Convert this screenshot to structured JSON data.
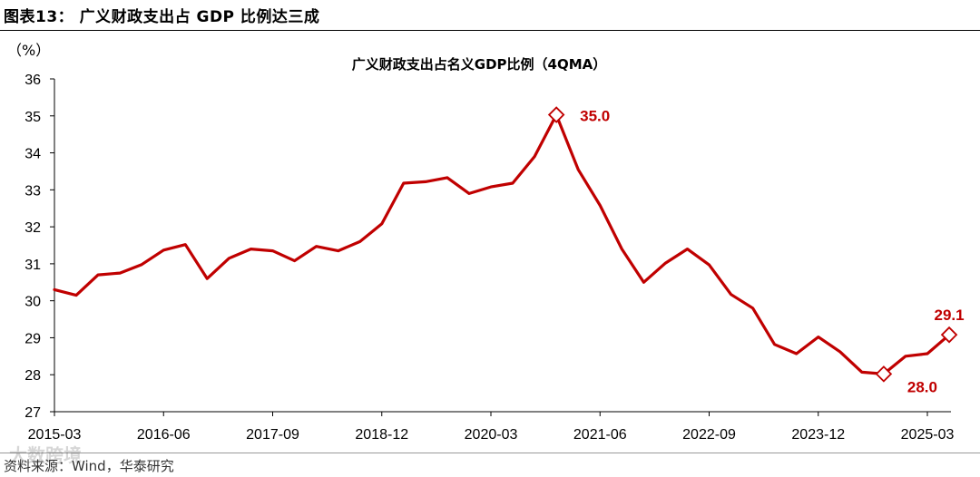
{
  "figure_title": "图表13：  广义财政支出占 GDP 比例达三成",
  "source": "资料来源：Wind，华泰研究",
  "watermark": "大数跨境",
  "chart_data": {
    "type": "line",
    "title": "广义财政支出占名义GDP比例（4QMA）",
    "ylabel": "（%）",
    "xlabel": "",
    "ylim": [
      27,
      36
    ],
    "yticks": [
      27,
      28,
      29,
      30,
      31,
      32,
      33,
      34,
      35,
      36
    ],
    "xtick_labels": [
      "2015-03",
      "2016-06",
      "2017-09",
      "2018-12",
      "2020-03",
      "2021-06",
      "2022-09",
      "2023-12",
      "2025-03"
    ],
    "line_color": "#C00000",
    "series": [
      {
        "name": "广义财政支出占名义GDP比例",
        "x": [
          "2015-03",
          "2015-06",
          "2015-09",
          "2015-12",
          "2016-03",
          "2016-06",
          "2016-09",
          "2016-12",
          "2017-03",
          "2017-06",
          "2017-09",
          "2017-12",
          "2018-03",
          "2018-06",
          "2018-09",
          "2018-12",
          "2019-03",
          "2019-06",
          "2019-09",
          "2019-12",
          "2020-03",
          "2020-06",
          "2020-09",
          "2020-12",
          "2021-03",
          "2021-06",
          "2021-09",
          "2021-12",
          "2022-03",
          "2022-06",
          "2022-09",
          "2022-12",
          "2023-03",
          "2023-06",
          "2023-09",
          "2023-12",
          "2024-03",
          "2024-06",
          "2024-09",
          "2024-12",
          "2025-03",
          "2025-06"
        ],
        "values": [
          30.3,
          30.15,
          30.7,
          30.75,
          30.98,
          31.37,
          31.52,
          30.6,
          31.15,
          31.4,
          31.35,
          31.08,
          31.47,
          31.35,
          31.6,
          32.08,
          33.18,
          33.22,
          33.33,
          32.9,
          33.08,
          33.18,
          33.9,
          35.03,
          33.55,
          32.58,
          31.4,
          30.5,
          31.02,
          31.4,
          30.97,
          30.17,
          29.8,
          28.82,
          28.57,
          29.02,
          28.62,
          28.07,
          28.02,
          28.5,
          28.57,
          29.08
        ]
      }
    ],
    "annotations": [
      {
        "label": "35.0",
        "x": "2020-12",
        "value": 35.03,
        "marker": "diamond"
      },
      {
        "label": "28.0",
        "x": "2024-09",
        "value": 28.02,
        "marker": "diamond"
      },
      {
        "label": "29.1",
        "x": "2025-06",
        "value": 29.08,
        "marker": "diamond"
      }
    ]
  }
}
